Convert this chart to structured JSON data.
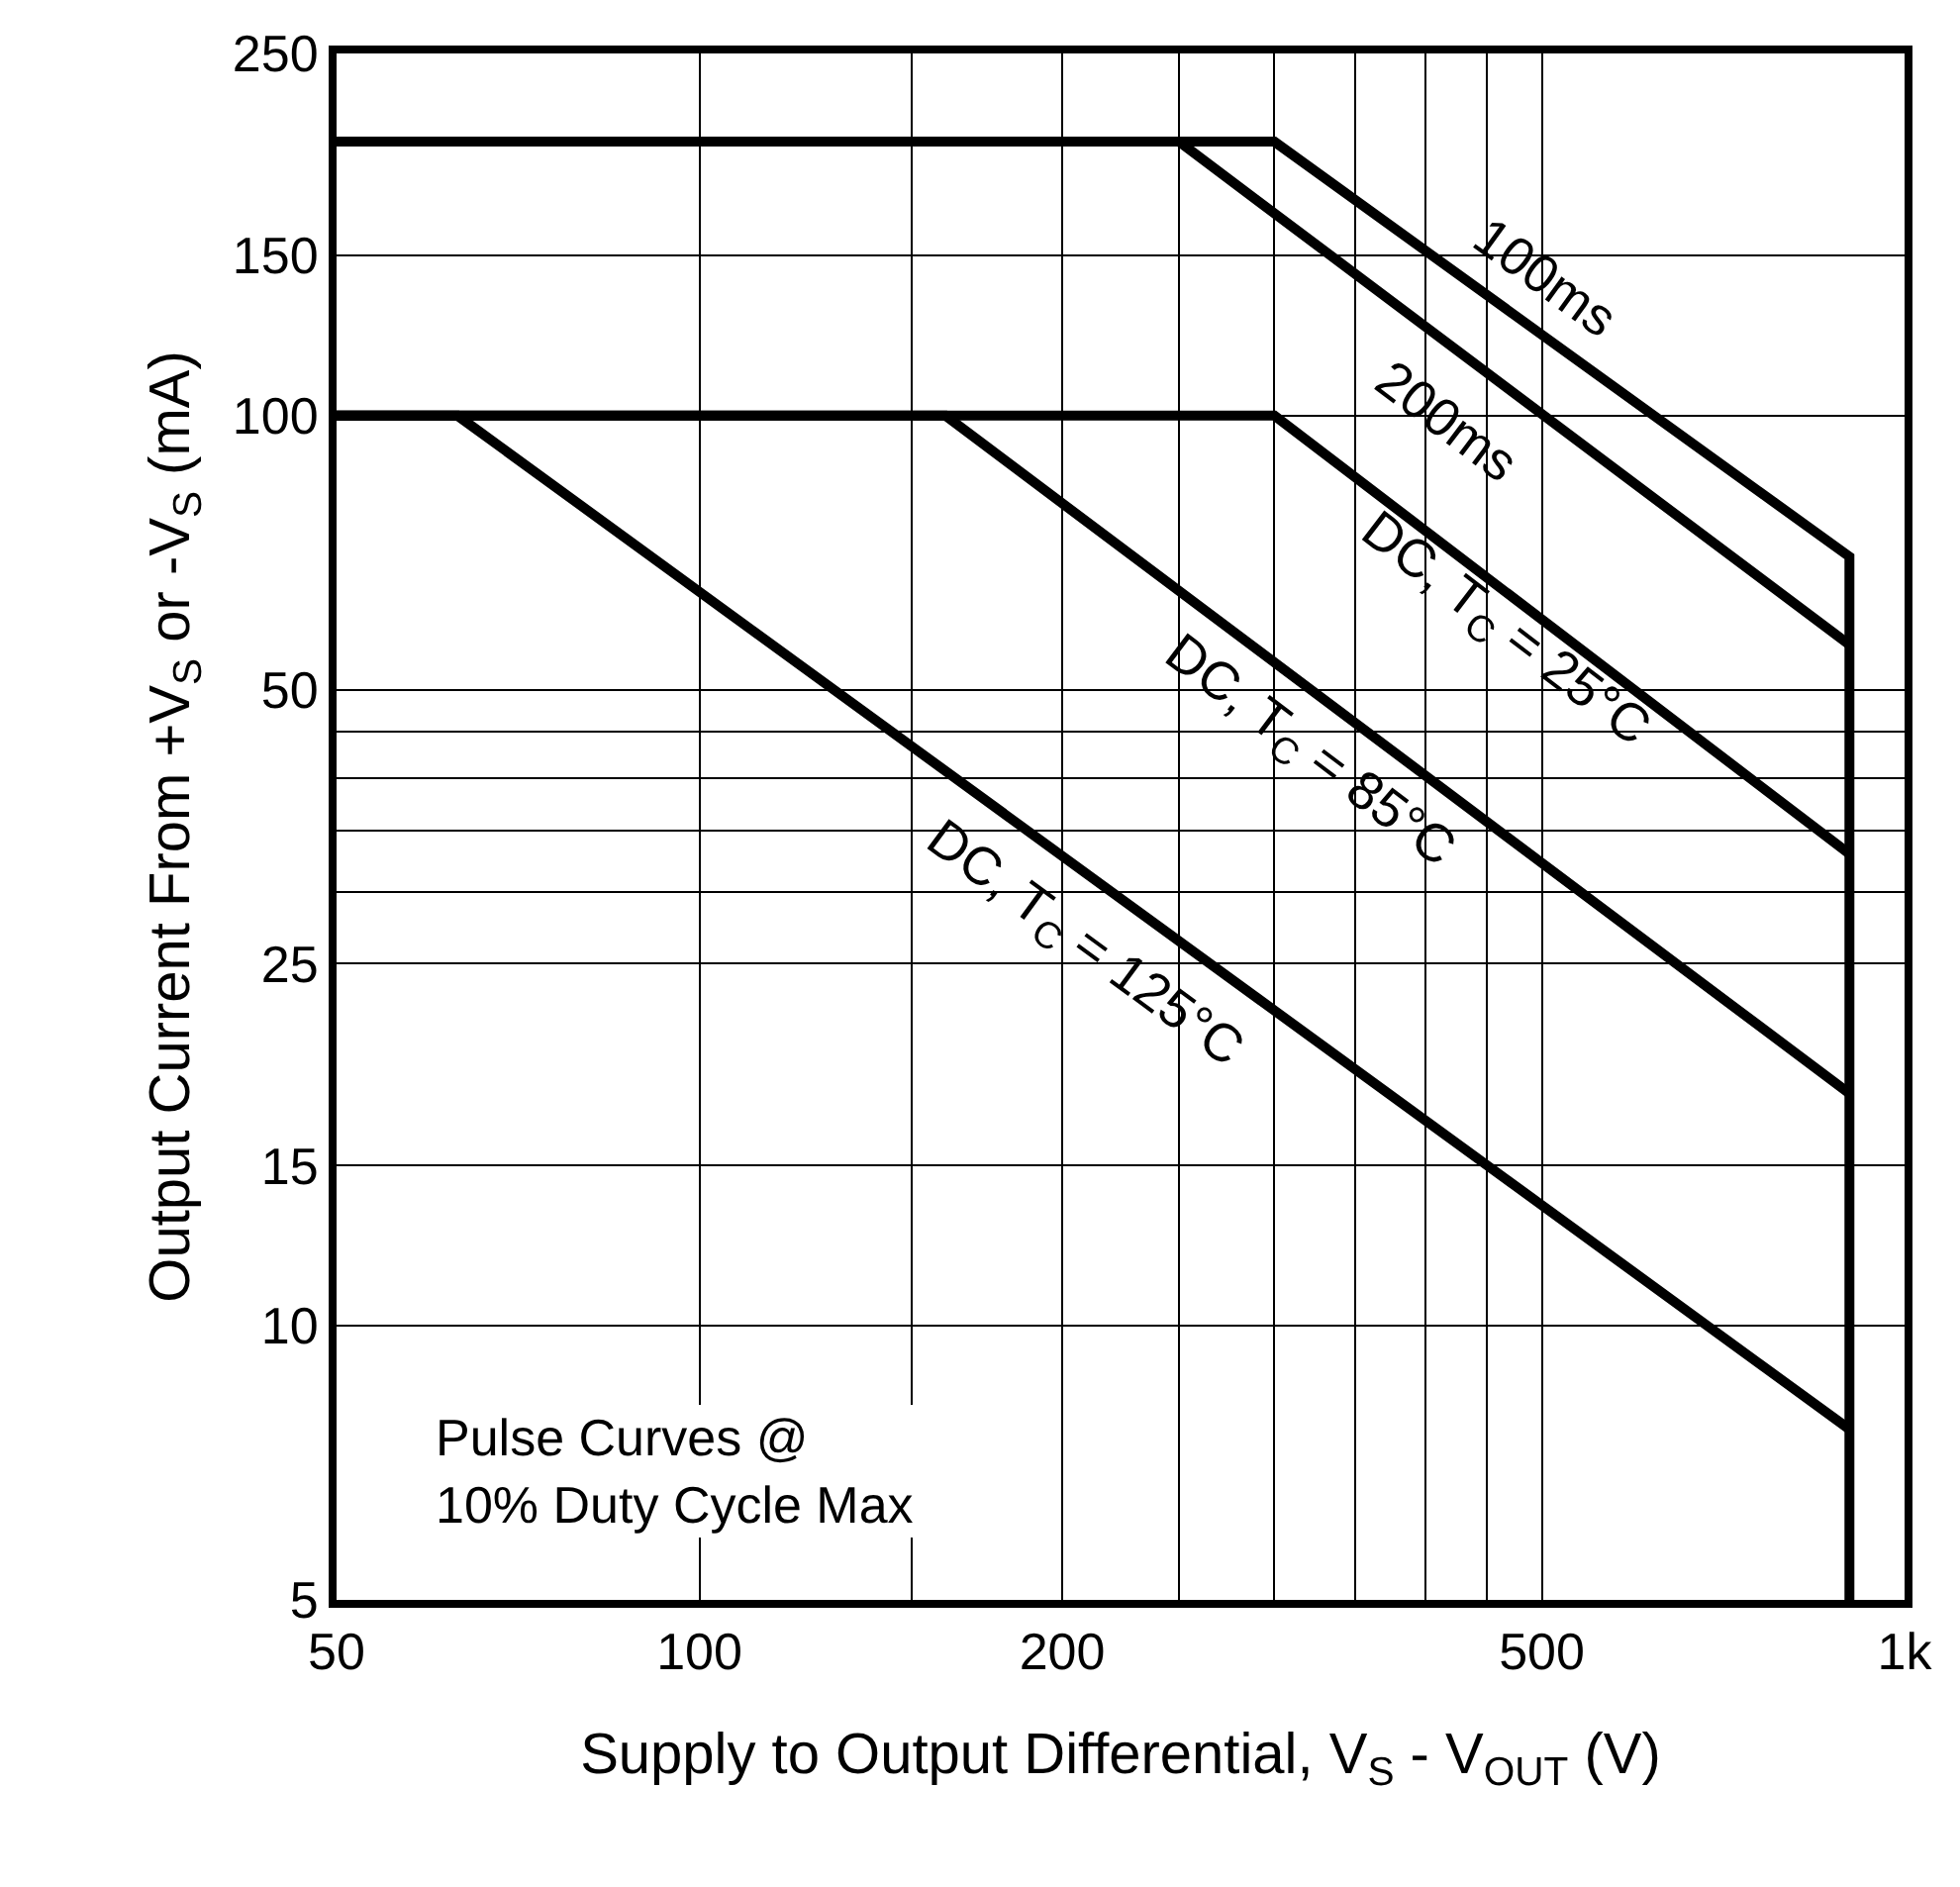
{
  "chart_data": {
    "type": "line",
    "xlabel": "Supply to Output Differential, V$_{S}$ - V$_{OUT}$ (V)",
    "ylabel": "Output Current From +V$_{S}$ or -V$_{S}$ (mA)",
    "log": "xy",
    "grid": true,
    "legend": false,
    "marker": "none",
    "line_style": "solid",
    "xlim": [
      50,
      1000
    ],
    "xticks": [
      50,
      100,
      {
        "value": 150,
        "label": null
      },
      200,
      {
        "value": 250,
        "label": null
      },
      {
        "value": 300,
        "label": null
      },
      {
        "value": 350,
        "label": null
      },
      {
        "value": 400,
        "label": null
      },
      {
        "value": 450,
        "label": null
      },
      500,
      {
        "value": 1000,
        "label": "1k"
      }
    ],
    "ylim": [
      5,
      250
    ],
    "yticks": [
      5,
      10,
      15,
      25,
      {
        "value": 30,
        "label": null
      },
      {
        "value": 35,
        "label": null
      },
      {
        "value": 40,
        "label": null
      },
      {
        "value": 45,
        "label": null
      },
      50,
      100,
      150,
      250
    ],
    "series": [
      {
        "name": "100ms",
        "color": "#000000",
        "x": [
          50,
          300,
          900,
          900
        ],
        "values": [
          200,
          200,
          70,
          5
        ]
      },
      {
        "name": "200ms",
        "color": "#000000",
        "x": [
          50,
          250,
          900
        ],
        "values": [
          200,
          200,
          56
        ]
      },
      {
        "name": "DC, T$_{C}$ = 25°C",
        "color": "#000000",
        "x": [
          50,
          300,
          900
        ],
        "values": [
          100,
          100,
          33
        ]
      },
      {
        "name": "DC, T$_{C}$ = 85°C",
        "color": "#000000",
        "x": [
          50,
          160,
          900
        ],
        "values": [
          100,
          100,
          18
        ]
      },
      {
        "name": "DC, T$_{C}$ = 125°C",
        "color": "#000000",
        "x": [
          50,
          63,
          900
        ],
        "values": [
          100,
          100,
          7.7
        ]
      }
    ],
    "annotations": [
      "Pulse Curves @\n10% Duty Cycle Max"
    ]
  }
}
